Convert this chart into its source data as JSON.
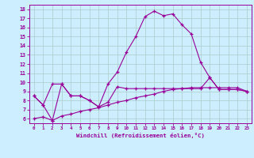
{
  "xlabel": "Windchill (Refroidissement éolien,°C)",
  "bg_color": "#cceeff",
  "line_color": "#990099",
  "grid_color": "#aacccc",
  "ylim": [
    5.5,
    18.5
  ],
  "xlim": [
    -0.5,
    23.5
  ],
  "yticks": [
    6,
    7,
    8,
    9,
    10,
    11,
    12,
    13,
    14,
    15,
    16,
    17,
    18
  ],
  "xticks": [
    0,
    1,
    2,
    3,
    4,
    5,
    6,
    7,
    8,
    9,
    10,
    11,
    12,
    13,
    14,
    15,
    16,
    17,
    18,
    19,
    20,
    21,
    22,
    23
  ],
  "line1_x": [
    0,
    1,
    2,
    3,
    4,
    5,
    6,
    7,
    8,
    9,
    10,
    11,
    12,
    13,
    14,
    15,
    16,
    17,
    18,
    19,
    20,
    21,
    22,
    23
  ],
  "line1_y": [
    8.5,
    7.5,
    5.8,
    9.8,
    8.5,
    8.5,
    8.0,
    7.3,
    9.8,
    11.1,
    13.3,
    15.0,
    17.2,
    17.8,
    17.3,
    17.5,
    16.3,
    15.3,
    12.2,
    10.5,
    9.2,
    9.2,
    9.2,
    9.0
  ],
  "line2_x": [
    0,
    1,
    2,
    3,
    4,
    5,
    6,
    7,
    8,
    9,
    10,
    11,
    12,
    13,
    14,
    15,
    16,
    17,
    18,
    19,
    20,
    21,
    22,
    23
  ],
  "line2_y": [
    8.5,
    7.5,
    9.8,
    9.8,
    8.5,
    8.5,
    8.0,
    7.3,
    7.8,
    9.5,
    9.3,
    9.3,
    9.3,
    9.3,
    9.3,
    9.3,
    9.3,
    9.3,
    9.3,
    10.5,
    9.2,
    9.2,
    9.2,
    9.0
  ],
  "line3_x": [
    0,
    1,
    2,
    3,
    4,
    5,
    6,
    7,
    8,
    9,
    10,
    11,
    12,
    13,
    14,
    15,
    16,
    17,
    18,
    19,
    20,
    21,
    22,
    23
  ],
  "line3_y": [
    6.0,
    6.2,
    5.8,
    6.3,
    6.5,
    6.8,
    7.0,
    7.2,
    7.5,
    7.8,
    8.0,
    8.3,
    8.5,
    8.7,
    9.0,
    9.2,
    9.3,
    9.4,
    9.4,
    9.4,
    9.4,
    9.4,
    9.4,
    9.0
  ]
}
